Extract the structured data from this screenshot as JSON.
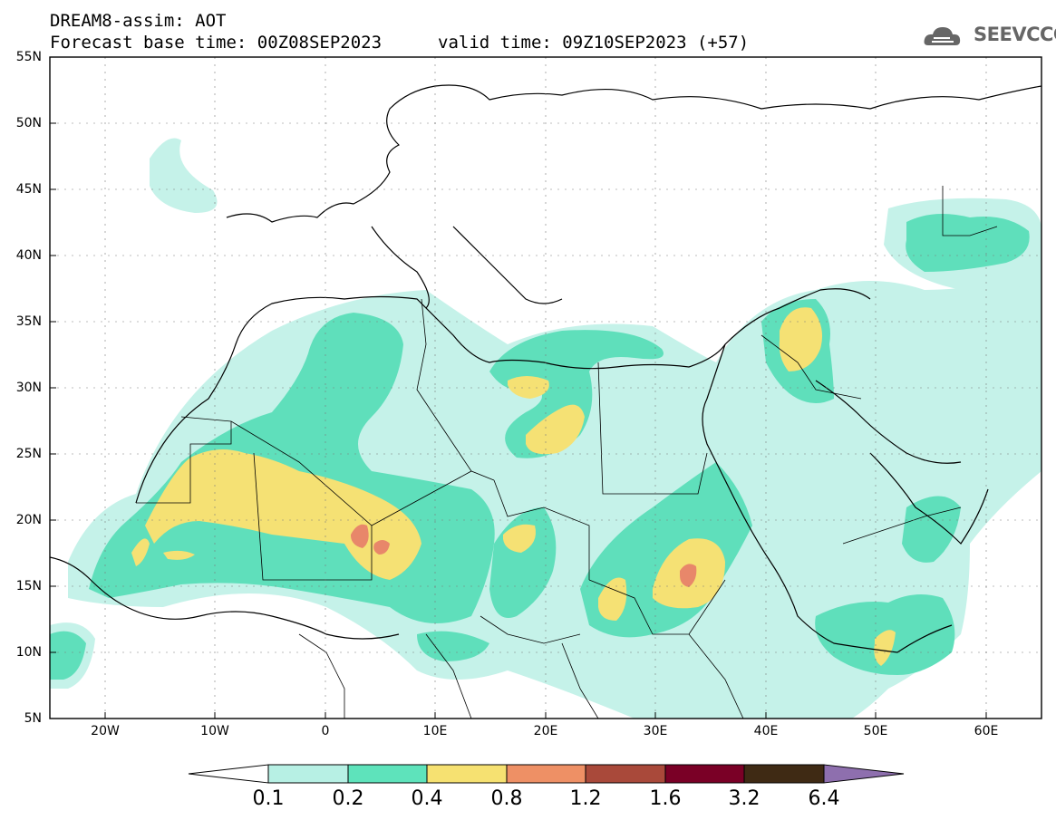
{
  "header": {
    "line1": "DREAM8-assim: AOT",
    "line2": "Forecast base time: 00Z08SEP2023",
    "valid": "valid time: 09Z10SEP2023 (+57)"
  },
  "logo": {
    "text": "SEEVCCC",
    "icon": "cloud-logo-icon"
  },
  "axes": {
    "lat_labels": [
      "55N",
      "50N",
      "45N",
      "40N",
      "35N",
      "30N",
      "25N",
      "20N",
      "15N",
      "10N",
      "5N"
    ],
    "lon_labels": [
      "20W",
      "10W",
      "0",
      "10E",
      "20E",
      "30E",
      "40E",
      "50E",
      "60E"
    ]
  },
  "colorbar": {
    "labels": [
      "0.1",
      "0.2",
      "0.4",
      "0.8",
      "1.2",
      "1.6",
      "3.2",
      "6.4"
    ],
    "colors": [
      "#ffffff",
      "#b7f0e4",
      "#5ee3bb",
      "#f6e171",
      "#ee9065",
      "#a9493a",
      "#7a0026",
      "#3f2a14",
      "#8e6fae"
    ]
  },
  "map": {
    "region": "North Africa, Middle East, Europe",
    "field_colors": {
      "low": "#c5f2e9",
      "mid": "#5fdfbb",
      "high": "#f5e174",
      "veryhigh": "#e8876a"
    },
    "grid": true
  }
}
